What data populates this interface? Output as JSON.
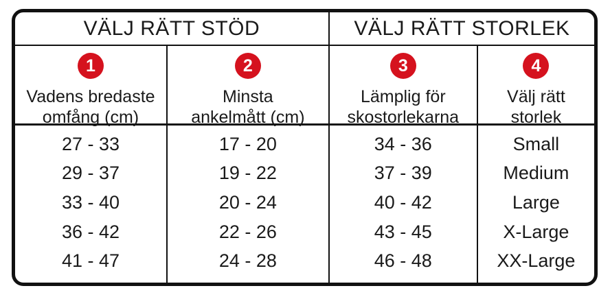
{
  "colors": {
    "badge_red": "#d5121e",
    "border_black": "#111111",
    "background": "#ffffff",
    "text": "#1a1a1a"
  },
  "chart_data": {
    "type": "table",
    "group_headers": [
      {
        "label": "VÄLJ RÄTT STÖD",
        "span": 2
      },
      {
        "label": "VÄLJ RÄTT STORLEK",
        "span": 2
      }
    ],
    "columns": [
      {
        "step": "1",
        "label": "Vadens bredaste omfång (cm)",
        "label_lines": [
          "Vadens bredaste",
          "omfång (cm)"
        ]
      },
      {
        "step": "2",
        "label": "Minsta ankelmått (cm)",
        "label_lines": [
          "Minsta",
          "ankelmått (cm)"
        ]
      },
      {
        "step": "3",
        "label": "Lämplig för skostorlekarna",
        "label_lines": [
          "Lämplig för",
          "skostorlekarna"
        ]
      },
      {
        "step": "4",
        "label": "Välj rätt storlek",
        "label_lines": [
          "Välj rätt",
          "storlek"
        ]
      }
    ],
    "rows": [
      [
        "27 - 33",
        "17 - 20",
        "34 - 36",
        "Small"
      ],
      [
        "29 - 37",
        "19 - 22",
        "37 - 39",
        "Medium"
      ],
      [
        "33 - 40",
        "20 - 24",
        "40 - 42",
        "Large"
      ],
      [
        "36 - 42",
        "22 - 26",
        "43 - 45",
        "X-Large"
      ],
      [
        "41 - 47",
        "24 - 28",
        "46 - 48",
        "XX-Large"
      ]
    ]
  }
}
